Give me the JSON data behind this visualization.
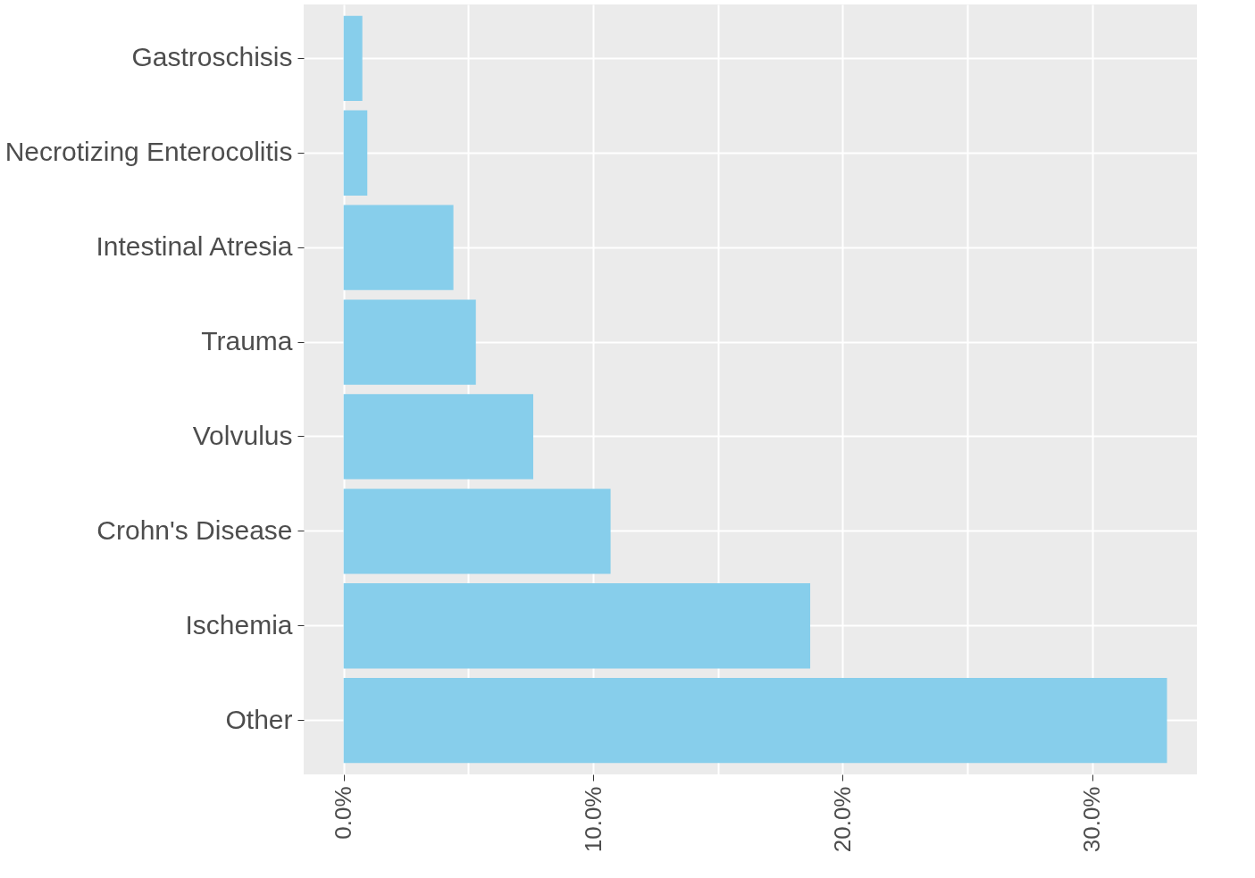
{
  "chart_data": {
    "type": "bar",
    "orientation": "horizontal",
    "categories": [
      "Gastroschisis",
      "Necrotizing Enterocolitis",
      "Intestinal Atresia",
      "Trauma",
      "Volvulus",
      "Crohn's Disease",
      "Ischemia",
      "Other"
    ],
    "values": [
      0.75,
      0.95,
      4.4,
      5.3,
      7.6,
      10.7,
      18.7,
      33.0
    ],
    "color": "#87ceeb",
    "xlim": [
      -1.6,
      34.2
    ],
    "xticks": [
      {
        "value": 0,
        "label": "0.0%"
      },
      {
        "value": 5,
        "label": null
      },
      {
        "value": 10,
        "label": "10.0%"
      },
      {
        "value": 15,
        "label": null
      },
      {
        "value": 20,
        "label": "20.0%"
      },
      {
        "value": 25,
        "label": null
      },
      {
        "value": 30,
        "label": "30.0%"
      }
    ],
    "grid": true
  }
}
